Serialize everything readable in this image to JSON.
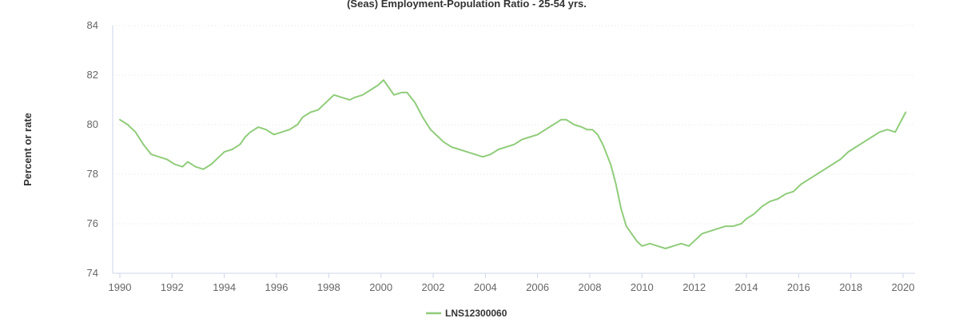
{
  "chart_data": {
    "type": "line",
    "title": "(Seas) Employment-Population Ratio - 25-54 yrs.",
    "xlabel": "",
    "ylabel": "Percent or rate",
    "xlim": [
      1990,
      2020
    ],
    "ylim": [
      74,
      84
    ],
    "x_ticks": [
      "1990",
      "1992",
      "1994",
      "1996",
      "1998",
      "2000",
      "2002",
      "2004",
      "2006",
      "2008",
      "2010",
      "2012",
      "2014",
      "2016",
      "2018",
      "2020"
    ],
    "y_ticks": [
      "74",
      "76",
      "78",
      "80",
      "82",
      "84"
    ],
    "grid": "horizontal dotted",
    "legend_position": "bottom-center",
    "colors": {
      "line": "#90cc7a",
      "grid": "#e6e6e6",
      "axis": "#ccd6eb"
    },
    "series": [
      {
        "name": "LNS12300060",
        "points": [
          [
            1990.0,
            80.2
          ],
          [
            1990.3,
            80.0
          ],
          [
            1990.6,
            79.7
          ],
          [
            1990.9,
            79.2
          ],
          [
            1991.2,
            78.8
          ],
          [
            1991.5,
            78.7
          ],
          [
            1991.8,
            78.6
          ],
          [
            1992.1,
            78.4
          ],
          [
            1992.4,
            78.3
          ],
          [
            1992.6,
            78.5
          ],
          [
            1992.9,
            78.3
          ],
          [
            1993.2,
            78.2
          ],
          [
            1993.5,
            78.4
          ],
          [
            1993.8,
            78.7
          ],
          [
            1994.0,
            78.9
          ],
          [
            1994.3,
            79.0
          ],
          [
            1994.6,
            79.2
          ],
          [
            1994.8,
            79.5
          ],
          [
            1995.0,
            79.7
          ],
          [
            1995.3,
            79.9
          ],
          [
            1995.6,
            79.8
          ],
          [
            1995.9,
            79.6
          ],
          [
            1996.2,
            79.7
          ],
          [
            1996.5,
            79.8
          ],
          [
            1996.8,
            80.0
          ],
          [
            1997.0,
            80.3
          ],
          [
            1997.3,
            80.5
          ],
          [
            1997.6,
            80.6
          ],
          [
            1997.8,
            80.8
          ],
          [
            1998.0,
            81.0
          ],
          [
            1998.2,
            81.2
          ],
          [
            1998.5,
            81.1
          ],
          [
            1998.8,
            81.0
          ],
          [
            1999.0,
            81.1
          ],
          [
            1999.3,
            81.2
          ],
          [
            1999.6,
            81.4
          ],
          [
            1999.9,
            81.6
          ],
          [
            2000.1,
            81.8
          ],
          [
            2000.3,
            81.5
          ],
          [
            2000.5,
            81.2
          ],
          [
            2000.8,
            81.3
          ],
          [
            2001.0,
            81.3
          ],
          [
            2001.3,
            80.9
          ],
          [
            2001.6,
            80.3
          ],
          [
            2001.9,
            79.8
          ],
          [
            2002.1,
            79.6
          ],
          [
            2002.4,
            79.3
          ],
          [
            2002.7,
            79.1
          ],
          [
            2003.0,
            79.0
          ],
          [
            2003.3,
            78.9
          ],
          [
            2003.6,
            78.8
          ],
          [
            2003.9,
            78.7
          ],
          [
            2004.2,
            78.8
          ],
          [
            2004.5,
            79.0
          ],
          [
            2004.8,
            79.1
          ],
          [
            2005.1,
            79.2
          ],
          [
            2005.4,
            79.4
          ],
          [
            2005.7,
            79.5
          ],
          [
            2006.0,
            79.6
          ],
          [
            2006.3,
            79.8
          ],
          [
            2006.6,
            80.0
          ],
          [
            2006.9,
            80.2
          ],
          [
            2007.1,
            80.2
          ],
          [
            2007.4,
            80.0
          ],
          [
            2007.7,
            79.9
          ],
          [
            2007.9,
            79.8
          ],
          [
            2008.1,
            79.8
          ],
          [
            2008.3,
            79.6
          ],
          [
            2008.5,
            79.2
          ],
          [
            2008.8,
            78.4
          ],
          [
            2009.0,
            77.6
          ],
          [
            2009.2,
            76.6
          ],
          [
            2009.4,
            75.9
          ],
          [
            2009.6,
            75.6
          ],
          [
            2009.8,
            75.3
          ],
          [
            2010.0,
            75.1
          ],
          [
            2010.3,
            75.2
          ],
          [
            2010.6,
            75.1
          ],
          [
            2010.9,
            75.0
          ],
          [
            2011.2,
            75.1
          ],
          [
            2011.5,
            75.2
          ],
          [
            2011.8,
            75.1
          ],
          [
            2012.0,
            75.3
          ],
          [
            2012.3,
            75.6
          ],
          [
            2012.6,
            75.7
          ],
          [
            2012.9,
            75.8
          ],
          [
            2013.2,
            75.9
          ],
          [
            2013.5,
            75.9
          ],
          [
            2013.8,
            76.0
          ],
          [
            2014.0,
            76.2
          ],
          [
            2014.3,
            76.4
          ],
          [
            2014.6,
            76.7
          ],
          [
            2014.9,
            76.9
          ],
          [
            2015.2,
            77.0
          ],
          [
            2015.5,
            77.2
          ],
          [
            2015.8,
            77.3
          ],
          [
            2016.1,
            77.6
          ],
          [
            2016.4,
            77.8
          ],
          [
            2016.7,
            78.0
          ],
          [
            2017.0,
            78.2
          ],
          [
            2017.3,
            78.4
          ],
          [
            2017.6,
            78.6
          ],
          [
            2017.9,
            78.9
          ],
          [
            2018.2,
            79.1
          ],
          [
            2018.5,
            79.3
          ],
          [
            2018.8,
            79.5
          ],
          [
            2019.1,
            79.7
          ],
          [
            2019.4,
            79.8
          ],
          [
            2019.7,
            79.7
          ],
          [
            2019.9,
            80.1
          ],
          [
            2020.1,
            80.5
          ]
        ]
      }
    ]
  }
}
